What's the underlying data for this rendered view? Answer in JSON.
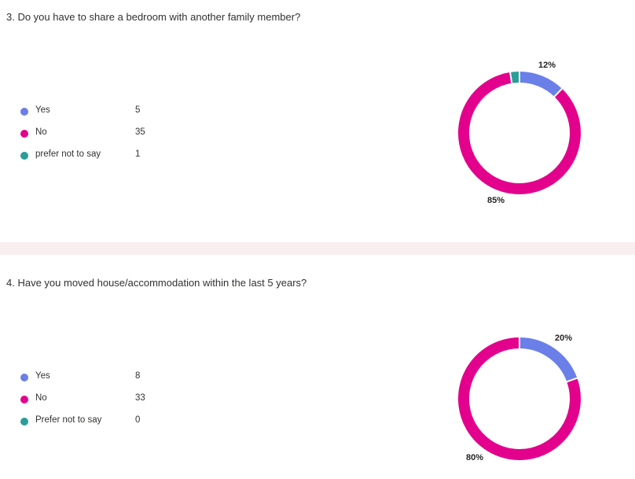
{
  "chart_data": [
    {
      "type": "pie",
      "title": "3. Do you have to share a bedroom with another family member?",
      "categories": [
        "Yes",
        "No",
        "prefer not to say"
      ],
      "values": [
        5,
        35,
        1
      ],
      "colors": [
        "#6B7FE8",
        "#E3008C",
        "#2A9D99"
      ],
      "data_labels": [
        {
          "category": "Yes",
          "text": "12%"
        },
        {
          "category": "No",
          "text": "85%"
        }
      ],
      "legend_position": "left"
    },
    {
      "type": "pie",
      "title": "4. Have you moved house/accommodation within the last 5 years?",
      "categories": [
        "Yes",
        "No",
        "Prefer not to say"
      ],
      "values": [
        8,
        33,
        0
      ],
      "colors": [
        "#6B7FE8",
        "#E3008C",
        "#2A9D99"
      ],
      "data_labels": [
        {
          "category": "Yes",
          "text": "20%"
        },
        {
          "category": "No",
          "text": "80%"
        }
      ],
      "legend_position": "left"
    }
  ]
}
